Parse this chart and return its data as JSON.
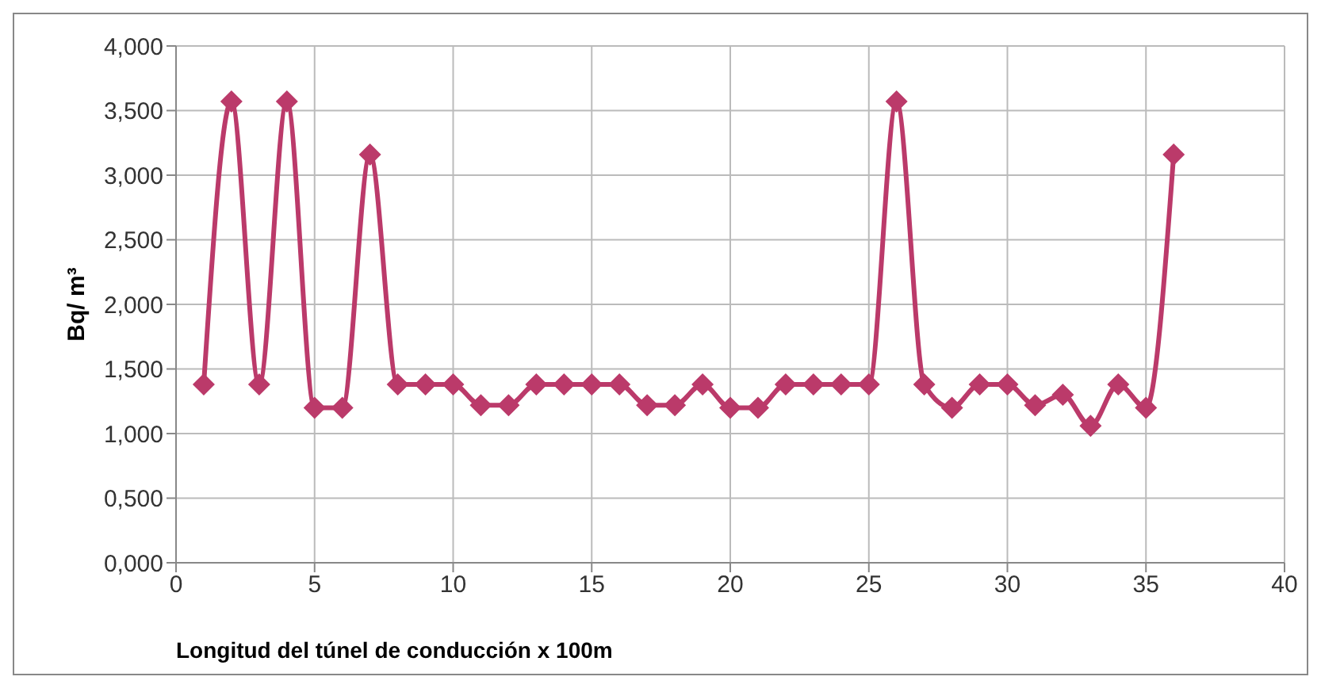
{
  "chart_data": {
    "type": "line",
    "xlabel": "Longitud del túnel de conducción x 100m",
    "ylabel": "Bq/ m³",
    "x": [
      1,
      2,
      3,
      4,
      5,
      6,
      7,
      8,
      9,
      10,
      11,
      12,
      13,
      14,
      15,
      16,
      17,
      18,
      19,
      20,
      21,
      22,
      23,
      24,
      25,
      26,
      27,
      28,
      29,
      30,
      31,
      32,
      33,
      34,
      35,
      36
    ],
    "series": [
      {
        "color": "#bb3a6a",
        "values": [
          1.38,
          3.57,
          1.38,
          3.57,
          1.2,
          1.2,
          3.16,
          1.38,
          1.38,
          1.38,
          1.22,
          1.22,
          1.38,
          1.38,
          1.38,
          1.38,
          1.22,
          1.22,
          1.38,
          1.2,
          1.2,
          1.38,
          1.38,
          1.38,
          1.38,
          3.57,
          1.38,
          1.2,
          1.38,
          1.38,
          1.22,
          1.3,
          1.06,
          1.38,
          1.2,
          3.16
        ]
      }
    ],
    "xlim": [
      0,
      40
    ],
    "xticks": [
      0,
      5,
      10,
      15,
      20,
      25,
      30,
      35,
      40
    ],
    "ylim": [
      0,
      4
    ],
    "yticks": [
      {
        "value": 0,
        "label": "0,000"
      },
      {
        "value": 0.5,
        "label": "0,500"
      },
      {
        "value": 1,
        "label": "1,000"
      },
      {
        "value": 1.5,
        "label": "1,500"
      },
      {
        "value": 2,
        "label": "2,000"
      },
      {
        "value": 2.5,
        "label": "2,500"
      },
      {
        "value": 3,
        "label": "3,000"
      },
      {
        "value": 3.5,
        "label": "3,500"
      },
      {
        "value": 4,
        "label": "4,000"
      }
    ],
    "grid": true,
    "legend": false,
    "marker": "diamond",
    "line_style": "solid"
  }
}
